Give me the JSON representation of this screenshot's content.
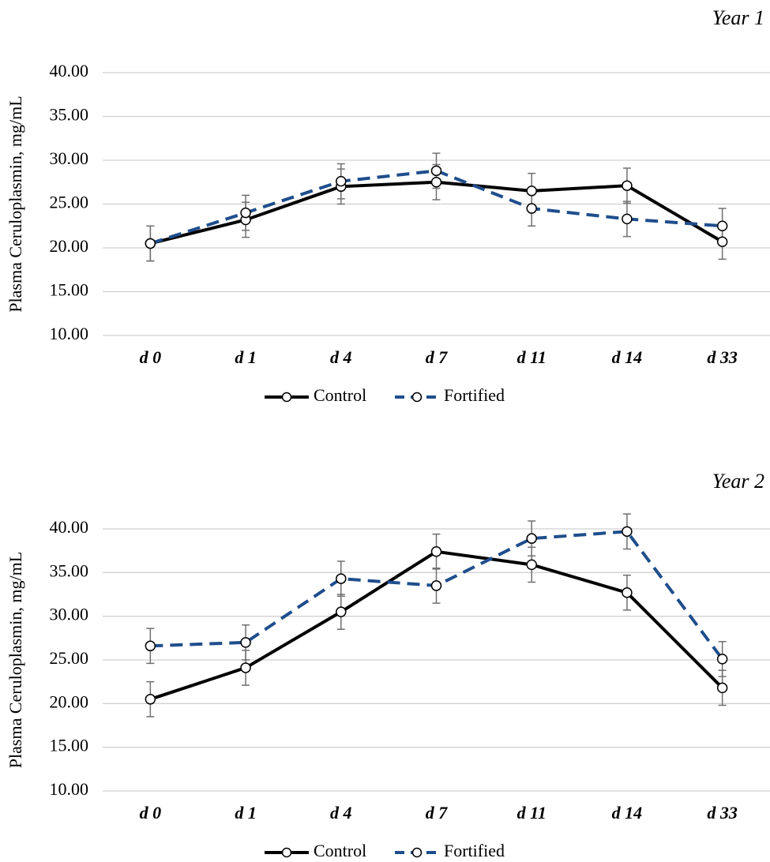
{
  "chart_data": [
    {
      "type": "line",
      "title": "Year 1",
      "y_label": "Plasma Ceruloplasmin, mg/mL",
      "categories": [
        "d 0",
        "d 1",
        "d 4",
        "d 7",
        "d 11",
        "d 14",
        "d 33"
      ],
      "series": [
        {
          "name": "Control",
          "color": "#000000",
          "dashed": false,
          "values": [
            20.5,
            23.2,
            27.0,
            27.5,
            26.5,
            27.1,
            20.7
          ],
          "errors": [
            2.0,
            2.0,
            2.0,
            2.0,
            2.0,
            2.0,
            2.0
          ]
        },
        {
          "name": "Fortified",
          "color": "#1f4e8c",
          "dashed": true,
          "values": [
            20.5,
            24.0,
            27.6,
            28.8,
            24.5,
            23.3,
            22.5
          ],
          "errors": [
            2.0,
            2.0,
            2.0,
            2.0,
            2.0,
            2.0,
            2.0
          ]
        }
      ],
      "ylim": [
        10,
        40
      ],
      "yticks": [
        {
          "value": 10,
          "label": "10.00"
        },
        {
          "value": 15,
          "label": "15.00"
        },
        {
          "value": 20,
          "label": "20.00"
        },
        {
          "value": 25,
          "label": "25.00"
        },
        {
          "value": 30,
          "label": "30.00"
        },
        {
          "value": 35,
          "label": "35.00"
        },
        {
          "value": 40,
          "label": "40.00"
        }
      ],
      "grid": true,
      "legend": "bottom"
    },
    {
      "type": "line",
      "title": "Year 2",
      "y_label": "Plasma Ceruloplasmin, mg/mL",
      "categories": [
        "d 0",
        "d 1",
        "d 4",
        "d 7",
        "d 11",
        "d 14",
        "d 33"
      ],
      "series": [
        {
          "name": "Control",
          "color": "#000000",
          "dashed": false,
          "values": [
            20.5,
            24.1,
            30.5,
            37.4,
            35.9,
            32.7,
            21.8
          ],
          "errors": [
            2.0,
            2.0,
            2.0,
            2.0,
            2.0,
            2.0,
            2.0
          ]
        },
        {
          "name": "Fortified",
          "color": "#1f4e8c",
          "dashed": true,
          "values": [
            26.6,
            27.0,
            34.3,
            33.5,
            38.9,
            39.7,
            25.1
          ],
          "errors": [
            2.0,
            2.0,
            2.0,
            2.0,
            2.0,
            2.0,
            2.0
          ]
        }
      ],
      "ylim": [
        10,
        40
      ],
      "yticks": [
        {
          "value": 10,
          "label": "10.00"
        },
        {
          "value": 15,
          "label": "15.00"
        },
        {
          "value": 20,
          "label": "20.00"
        },
        {
          "value": 25,
          "label": "25.00"
        },
        {
          "value": 30,
          "label": "30.00"
        },
        {
          "value": 35,
          "label": "35.00"
        },
        {
          "value": 40,
          "label": "40.00"
        }
      ],
      "grid": true,
      "legend": "bottom"
    }
  ]
}
